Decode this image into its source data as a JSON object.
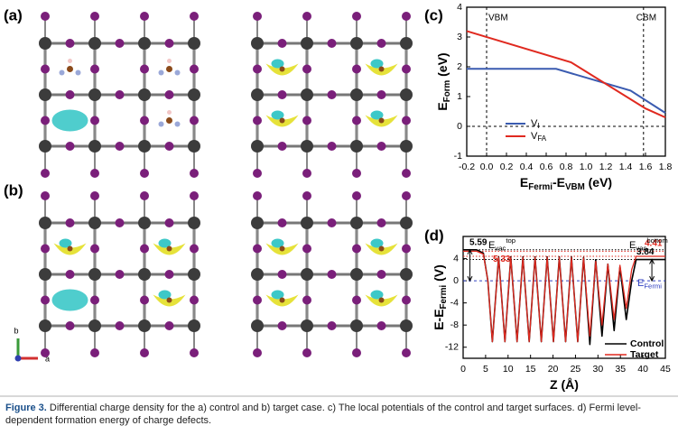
{
  "panel_labels": [
    "(a)",
    "(b)",
    "(c)",
    "(d)"
  ],
  "axis_triad": {
    "vertical": "b",
    "horizontal": "a"
  },
  "chart_data": [
    {
      "type": "line",
      "xlabel": [
        {
          "t": "E"
        },
        {
          "t": "Fermi",
          "sub": true
        },
        {
          "t": "-E"
        },
        {
          "t": "VBM",
          "sub": true
        },
        {
          "t": " (eV)"
        }
      ],
      "ylabel": [
        {
          "t": "E"
        },
        {
          "t": "Form",
          "sub": true
        },
        {
          "t": " (eV)"
        }
      ],
      "xlim": [
        -0.2,
        1.8
      ],
      "xticks": [
        -0.2,
        {
          "value": 0,
          "label": "0.0"
        },
        0.2,
        0.4,
        0.6,
        0.8,
        {
          "value": 1,
          "label": "1.0"
        },
        1.2,
        1.4,
        1.6,
        1.8
      ],
      "ylim": [
        -1,
        4
      ],
      "yticks": [
        -1,
        0,
        1,
        2,
        3,
        4
      ],
      "markers": [
        {
          "label": "VBM",
          "x": 0
        },
        {
          "label": "CBM",
          "x": 1.58
        }
      ],
      "series": [
        {
          "name": "V",
          "name_sub": "I",
          "color": "#3a5bb0",
          "x": [
            -0.2,
            0.7,
            1.45,
            1.8
          ],
          "values": [
            1.93,
            1.93,
            1.2,
            0.45
          ]
        },
        {
          "name": "V",
          "name_sub": "FA",
          "color": "#e0291f",
          "x": [
            -0.2,
            0.85,
            1.6,
            1.8
          ],
          "values": [
            3.2,
            2.15,
            0.6,
            0.3
          ]
        }
      ]
    },
    {
      "type": "line",
      "xlabel": [
        {
          "t": "Z (Å)"
        }
      ],
      "ylabel": [
        {
          "t": "E-E"
        },
        {
          "t": "Fermi",
          "sub": true
        },
        {
          "t": " (V)"
        }
      ],
      "xlim": [
        0,
        45
      ],
      "xticks": [
        0,
        5,
        10,
        15,
        20,
        25,
        30,
        35,
        40,
        45
      ],
      "ylim": [
        -14,
        8
      ],
      "yticks": [
        -12,
        -8,
        -4,
        0,
        4
      ],
      "x": [
        0,
        3,
        4.5,
        5.5,
        6.5,
        7.9,
        9.3,
        10.6,
        12,
        13.3,
        14.7,
        16,
        17.4,
        18.7,
        20.1,
        21.4,
        22.8,
        24.1,
        25.5,
        26.8,
        28.2,
        29.5,
        30.9,
        32.2,
        33.6,
        34.9,
        36.3,
        37.5,
        38.5,
        45
      ],
      "series": [
        {
          "name": "Control",
          "color": "#000000",
          "values": [
            5.59,
            5.59,
            5,
            0,
            -11,
            4.3,
            -11,
            4.3,
            -11,
            4.3,
            -11,
            4.3,
            -11,
            4.3,
            -11,
            4.3,
            -11,
            4.3,
            -11,
            4.2,
            -11.5,
            3.8,
            -10,
            3,
            -9,
            2.5,
            -7,
            0,
            3.84,
            3.84
          ]
        },
        {
          "name": "Target",
          "color": "#e0291f",
          "values": [
            5.33,
            5.33,
            4.8,
            0,
            -11,
            4.2,
            -11,
            4.2,
            -11,
            4.2,
            -11,
            4.2,
            -11,
            4.2,
            -11,
            4.2,
            -11,
            4.2,
            -11,
            4.1,
            -10,
            3.5,
            -8,
            3,
            -7,
            2.8,
            -5,
            2,
            4.41,
            4.41
          ]
        }
      ],
      "levels": [
        {
          "value": 5.59,
          "color": "#000000"
        },
        {
          "value": 5.33,
          "color": "#e0291f"
        },
        {
          "value": 3.84,
          "color": "#000000"
        },
        {
          "value": 4.41,
          "color": "#e0291f"
        }
      ],
      "annotations": {
        "vac_top": [
          {
            "t": "E"
          },
          {
            "t": "vac",
            "sub": true
          },
          {
            "t": "top",
            "sup": true
          }
        ],
        "vac_bottom": [
          {
            "t": "E"
          },
          {
            "t": "vac",
            "sub": true
          },
          {
            "t": "bottom",
            "sup": true
          }
        ],
        "fermi": [
          {
            "t": "E"
          },
          {
            "t": "Fermi",
            "sub": true
          }
        ]
      },
      "fermi_level": 0
    }
  ],
  "caption": {
    "label": "Figure 3.",
    "lines": [
      "Differential charge density for the a) control and b) target case. c) The local potentials of the control and target surfaces. d) Fermi level-",
      "dependent formation energy of charge defects."
    ]
  }
}
